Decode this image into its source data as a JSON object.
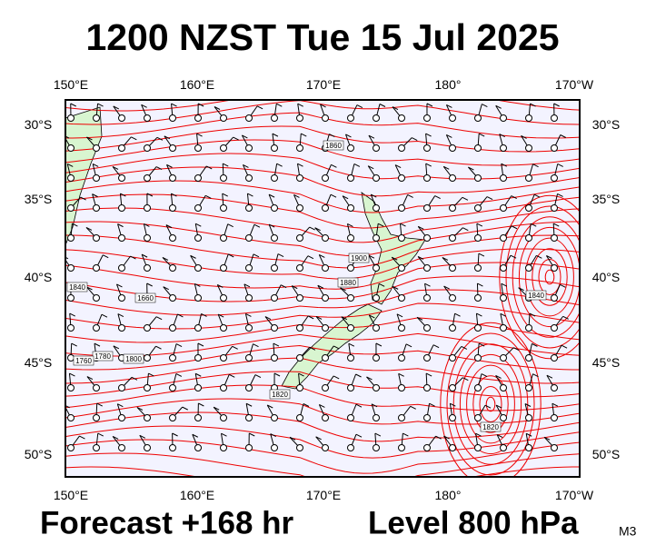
{
  "header": {
    "title": "1200 NZST Tue 15 Jul 2025"
  },
  "map": {
    "longitude_labels": [
      "150°E",
      "160°E",
      "170°E",
      "180°",
      "170°W"
    ],
    "latitude_labels": [
      "30°S",
      "35°S",
      "40°S",
      "45°S",
      "50°S"
    ],
    "contour_labels": [
      "1860",
      "1900",
      "1880",
      "1840",
      "1660",
      "1820",
      "1800",
      "1780",
      "1760",
      "1840",
      "1820"
    ]
  },
  "footer": {
    "forecast": "Forecast +168 hr",
    "level": "Level 800 hPa",
    "model": "M3"
  }
}
